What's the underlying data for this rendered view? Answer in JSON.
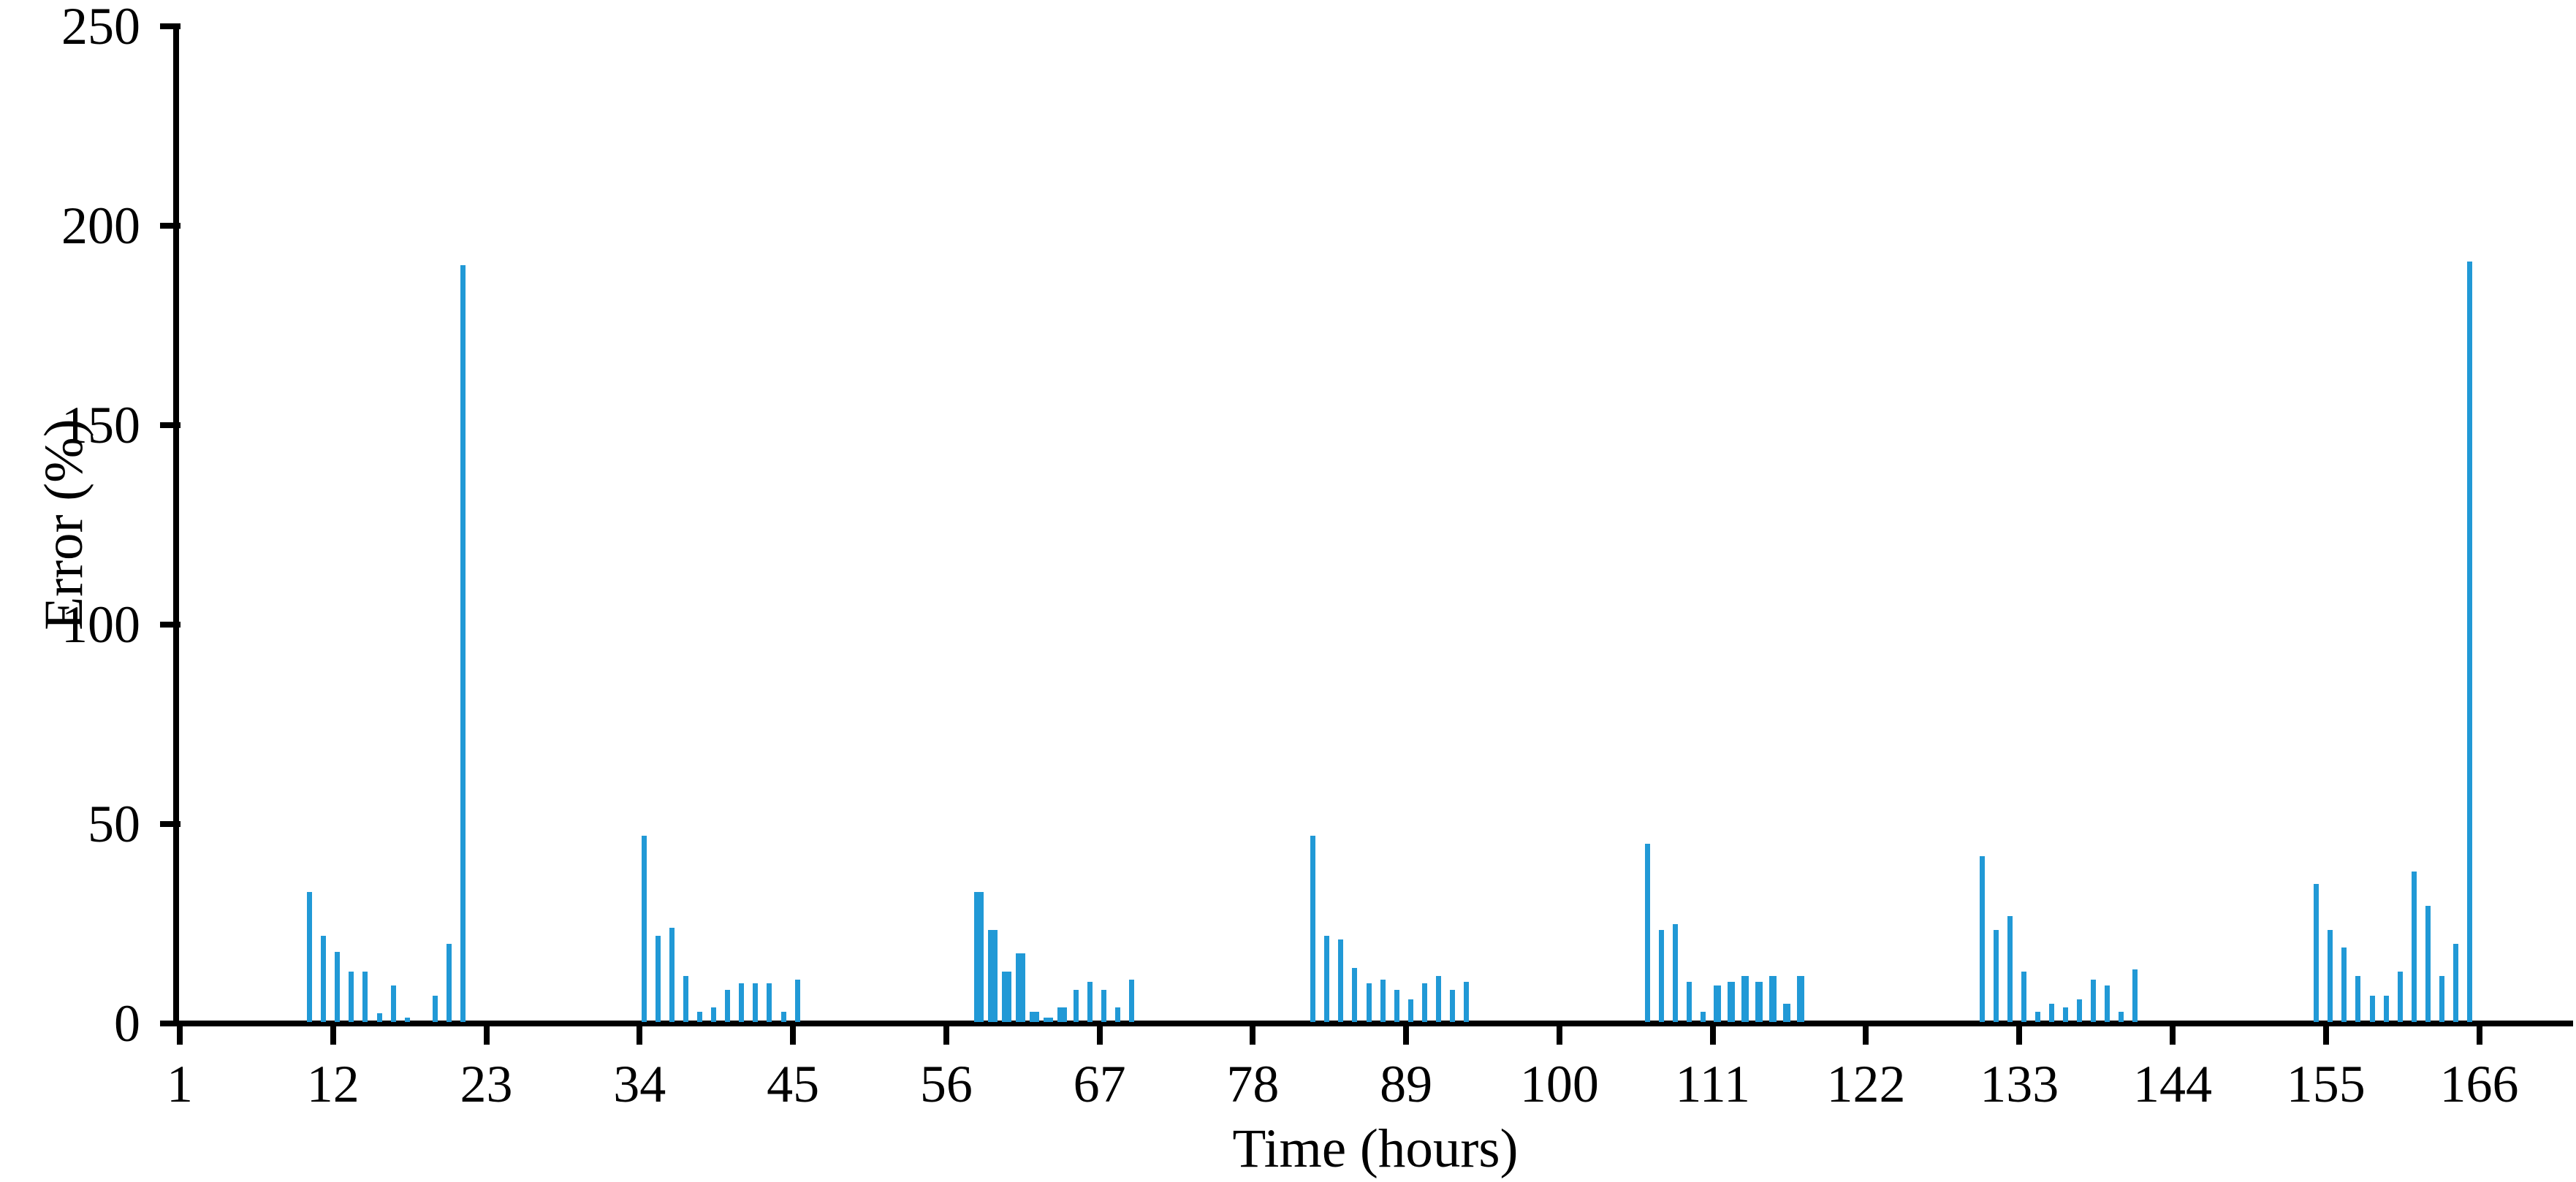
{
  "chart_data": {
    "type": "bar",
    "title": "",
    "xlabel": "Time (hours)",
    "ylabel": "Error (%)",
    "x_ticks": [
      1,
      12,
      23,
      34,
      45,
      56,
      67,
      78,
      89,
      100,
      111,
      122,
      133,
      144,
      155,
      166
    ],
    "y_ticks": [
      0,
      50,
      100,
      150,
      200,
      250
    ],
    "xlim": [
      1,
      172
    ],
    "ylim": [
      0,
      250
    ],
    "grid": false,
    "legend": false,
    "bar_color": "#2199D6",
    "axis_color": "#000000",
    "point_format": [
      "hour",
      "error_pct",
      "bar_width_class"
    ],
    "width_classes": {
      "n": "narrow",
      "m": "medium",
      "w": "wide"
    },
    "points": [
      [
        10,
        33,
        "n"
      ],
      [
        11,
        22,
        "n"
      ],
      [
        12,
        18,
        "n"
      ],
      [
        13,
        13,
        "n"
      ],
      [
        14,
        13,
        "n"
      ],
      [
        15,
        2.5,
        "n"
      ],
      [
        16,
        9.5,
        "n"
      ],
      [
        17,
        1.5,
        "n"
      ],
      [
        19,
        7,
        "n"
      ],
      [
        20,
        20,
        "n"
      ],
      [
        21,
        190,
        "n"
      ],
      [
        34,
        47,
        "n"
      ],
      [
        35,
        22,
        "n"
      ],
      [
        36,
        24,
        "n"
      ],
      [
        37,
        12,
        "n"
      ],
      [
        38,
        3,
        "n"
      ],
      [
        39,
        4,
        "n"
      ],
      [
        40,
        8.5,
        "n"
      ],
      [
        41,
        10,
        "n"
      ],
      [
        42,
        10,
        "n"
      ],
      [
        43,
        10,
        "n"
      ],
      [
        44,
        3,
        "n"
      ],
      [
        45,
        11,
        "n"
      ],
      [
        58,
        33,
        "w"
      ],
      [
        59,
        23.5,
        "w"
      ],
      [
        60,
        13,
        "w"
      ],
      [
        61,
        17.5,
        "w"
      ],
      [
        62,
        3,
        "w"
      ],
      [
        63,
        1.5,
        "w"
      ],
      [
        64,
        4,
        "w"
      ],
      [
        65,
        8.5,
        "n"
      ],
      [
        66,
        10.5,
        "n"
      ],
      [
        67,
        8.5,
        "n"
      ],
      [
        68,
        4,
        "n"
      ],
      [
        69,
        11,
        "n"
      ],
      [
        82,
        47,
        "n"
      ],
      [
        83,
        22,
        "n"
      ],
      [
        84,
        21,
        "n"
      ],
      [
        85,
        14,
        "n"
      ],
      [
        86,
        10,
        "n"
      ],
      [
        87,
        11,
        "n"
      ],
      [
        88,
        8.5,
        "n"
      ],
      [
        89,
        6,
        "n"
      ],
      [
        90,
        10,
        "n"
      ],
      [
        91,
        12,
        "n"
      ],
      [
        92,
        8.5,
        "n"
      ],
      [
        93,
        10.5,
        "n"
      ],
      [
        106,
        45,
        "n"
      ],
      [
        107,
        23.5,
        "n"
      ],
      [
        108,
        25,
        "n"
      ],
      [
        109,
        10.5,
        "n"
      ],
      [
        110,
        3,
        "n"
      ],
      [
        111,
        9.5,
        "m"
      ],
      [
        112,
        10.5,
        "m"
      ],
      [
        113,
        12,
        "m"
      ],
      [
        114,
        10.5,
        "m"
      ],
      [
        115,
        12,
        "m"
      ],
      [
        116,
        5,
        "m"
      ],
      [
        117,
        12,
        "m"
      ],
      [
        130,
        42,
        "n"
      ],
      [
        131,
        23.5,
        "n"
      ],
      [
        132,
        27,
        "n"
      ],
      [
        133,
        13,
        "n"
      ],
      [
        134,
        3,
        "n"
      ],
      [
        135,
        5,
        "n"
      ],
      [
        136,
        4,
        "n"
      ],
      [
        137,
        6,
        "n"
      ],
      [
        138,
        11,
        "n"
      ],
      [
        139,
        9.5,
        "n"
      ],
      [
        140,
        3,
        "n"
      ],
      [
        141,
        13.5,
        "n"
      ],
      [
        154,
        35,
        "n"
      ],
      [
        155,
        23.5,
        "n"
      ],
      [
        156,
        19,
        "n"
      ],
      [
        157,
        12,
        "n"
      ],
      [
        158,
        7,
        "n"
      ],
      [
        159,
        7,
        "n"
      ],
      [
        160,
        13,
        "n"
      ],
      [
        161,
        38,
        "n"
      ],
      [
        162,
        29.5,
        "n"
      ],
      [
        163,
        12,
        "n"
      ],
      [
        164,
        20,
        "n"
      ],
      [
        165,
        191,
        "n"
      ]
    ]
  }
}
